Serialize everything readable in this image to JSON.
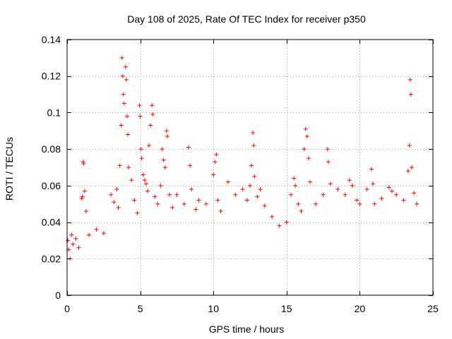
{
  "chart_data": {
    "type": "scatter",
    "title": "Day 108 of 2025, Rate Of TEC Index for receiver p350",
    "xlabel": "GPS time / hours",
    "ylabel": "ROTI / TECUs",
    "xlim": [
      0,
      25
    ],
    "ylim": [
      0,
      0.14
    ],
    "grid": true,
    "marker": "+",
    "color": "#ff0000",
    "x_ticks": [
      "0",
      "5",
      "10",
      "15",
      "20",
      "25"
    ],
    "x_tick_values": [
      0,
      5,
      10,
      15,
      20,
      25
    ],
    "y_ticks": [
      "0",
      "0.02",
      "0.04",
      "0.06",
      "0.08",
      "0.1",
      "0.12",
      "0.14"
    ],
    "y_tick_values": [
      0,
      0.02,
      0.04,
      0.06,
      0.08,
      0.1,
      0.12,
      0.14
    ],
    "series": [
      {
        "name": "ROTI",
        "points": [
          [
            0.05,
            0.03
          ],
          [
            0.1,
            0.025
          ],
          [
            0.2,
            0.02
          ],
          [
            0.3,
            0.033
          ],
          [
            0.4,
            0.028
          ],
          [
            0.6,
            0.031
          ],
          [
            0.8,
            0.026
          ],
          [
            1.0,
            0.053
          ],
          [
            1.05,
            0.054
          ],
          [
            1.1,
            0.073
          ],
          [
            1.12,
            0.072
          ],
          [
            1.2,
            0.057
          ],
          [
            1.3,
            0.046
          ],
          [
            1.5,
            0.033
          ],
          [
            2.0,
            0.036
          ],
          [
            2.5,
            0.034
          ],
          [
            3.0,
            0.055
          ],
          [
            3.2,
            0.051
          ],
          [
            3.4,
            0.058
          ],
          [
            3.5,
            0.048
          ],
          [
            3.6,
            0.071
          ],
          [
            3.7,
            0.093
          ],
          [
            3.75,
            0.13
          ],
          [
            3.8,
            0.12
          ],
          [
            3.85,
            0.11
          ],
          [
            3.9,
            0.105
          ],
          [
            4.0,
            0.125
          ],
          [
            4.05,
            0.118
          ],
          [
            4.1,
            0.098
          ],
          [
            4.15,
            0.088
          ],
          [
            4.2,
            0.07
          ],
          [
            4.4,
            0.063
          ],
          [
            4.6,
            0.052
          ],
          [
            4.8,
            0.045
          ],
          [
            4.95,
            0.104
          ],
          [
            5.0,
            0.098
          ],
          [
            5.05,
            0.08
          ],
          [
            5.1,
            0.075
          ],
          [
            5.2,
            0.066
          ],
          [
            5.3,
            0.063
          ],
          [
            5.4,
            0.061
          ],
          [
            5.5,
            0.057
          ],
          [
            5.6,
            0.082
          ],
          [
            5.7,
            0.093
          ],
          [
            5.8,
            0.104
          ],
          [
            5.85,
            0.099
          ],
          [
            6.0,
            0.054
          ],
          [
            6.2,
            0.05
          ],
          [
            6.4,
            0.06
          ],
          [
            6.5,
            0.08
          ],
          [
            6.6,
            0.074
          ],
          [
            6.7,
            0.07
          ],
          [
            6.8,
            0.09
          ],
          [
            6.85,
            0.087
          ],
          [
            7.0,
            0.055
          ],
          [
            7.2,
            0.048
          ],
          [
            7.5,
            0.055
          ],
          [
            8.0,
            0.05
          ],
          [
            8.3,
            0.081
          ],
          [
            8.4,
            0.071
          ],
          [
            8.5,
            0.058
          ],
          [
            8.8,
            0.047
          ],
          [
            9.0,
            0.052
          ],
          [
            9.5,
            0.05
          ],
          [
            10.0,
            0.066
          ],
          [
            10.1,
            0.073
          ],
          [
            10.2,
            0.077
          ],
          [
            10.3,
            0.052
          ],
          [
            10.5,
            0.046
          ],
          [
            11.0,
            0.062
          ],
          [
            11.5,
            0.055
          ],
          [
            12.0,
            0.058
          ],
          [
            12.3,
            0.052
          ],
          [
            12.5,
            0.06
          ],
          [
            12.6,
            0.071
          ],
          [
            12.7,
            0.089
          ],
          [
            12.75,
            0.082
          ],
          [
            12.8,
            0.065
          ],
          [
            13.0,
            0.054
          ],
          [
            13.2,
            0.058
          ],
          [
            13.5,
            0.049
          ],
          [
            14.0,
            0.043
          ],
          [
            14.5,
            0.038
          ],
          [
            15.0,
            0.04
          ],
          [
            15.3,
            0.055
          ],
          [
            15.5,
            0.064
          ],
          [
            15.6,
            0.06
          ],
          [
            15.8,
            0.05
          ],
          [
            16.0,
            0.046
          ],
          [
            16.2,
            0.08
          ],
          [
            16.3,
            0.091
          ],
          [
            16.4,
            0.087
          ],
          [
            16.5,
            0.075
          ],
          [
            16.6,
            0.062
          ],
          [
            17.0,
            0.05
          ],
          [
            17.5,
            0.055
          ],
          [
            17.8,
            0.08
          ],
          [
            17.85,
            0.073
          ],
          [
            18.0,
            0.061
          ],
          [
            18.5,
            0.058
          ],
          [
            19.0,
            0.055
          ],
          [
            19.3,
            0.063
          ],
          [
            19.5,
            0.06
          ],
          [
            19.8,
            0.052
          ],
          [
            20.0,
            0.05
          ],
          [
            20.5,
            0.058
          ],
          [
            20.8,
            0.069
          ],
          [
            20.9,
            0.061
          ],
          [
            21.0,
            0.05
          ],
          [
            21.5,
            0.053
          ],
          [
            22.0,
            0.059
          ],
          [
            22.2,
            0.057
          ],
          [
            22.5,
            0.055
          ],
          [
            23.0,
            0.052
          ],
          [
            23.3,
            0.068
          ],
          [
            23.4,
            0.082
          ],
          [
            23.45,
            0.118
          ],
          [
            23.5,
            0.11
          ],
          [
            23.55,
            0.07
          ],
          [
            23.7,
            0.056
          ],
          [
            23.9,
            0.05
          ]
        ]
      }
    ]
  }
}
